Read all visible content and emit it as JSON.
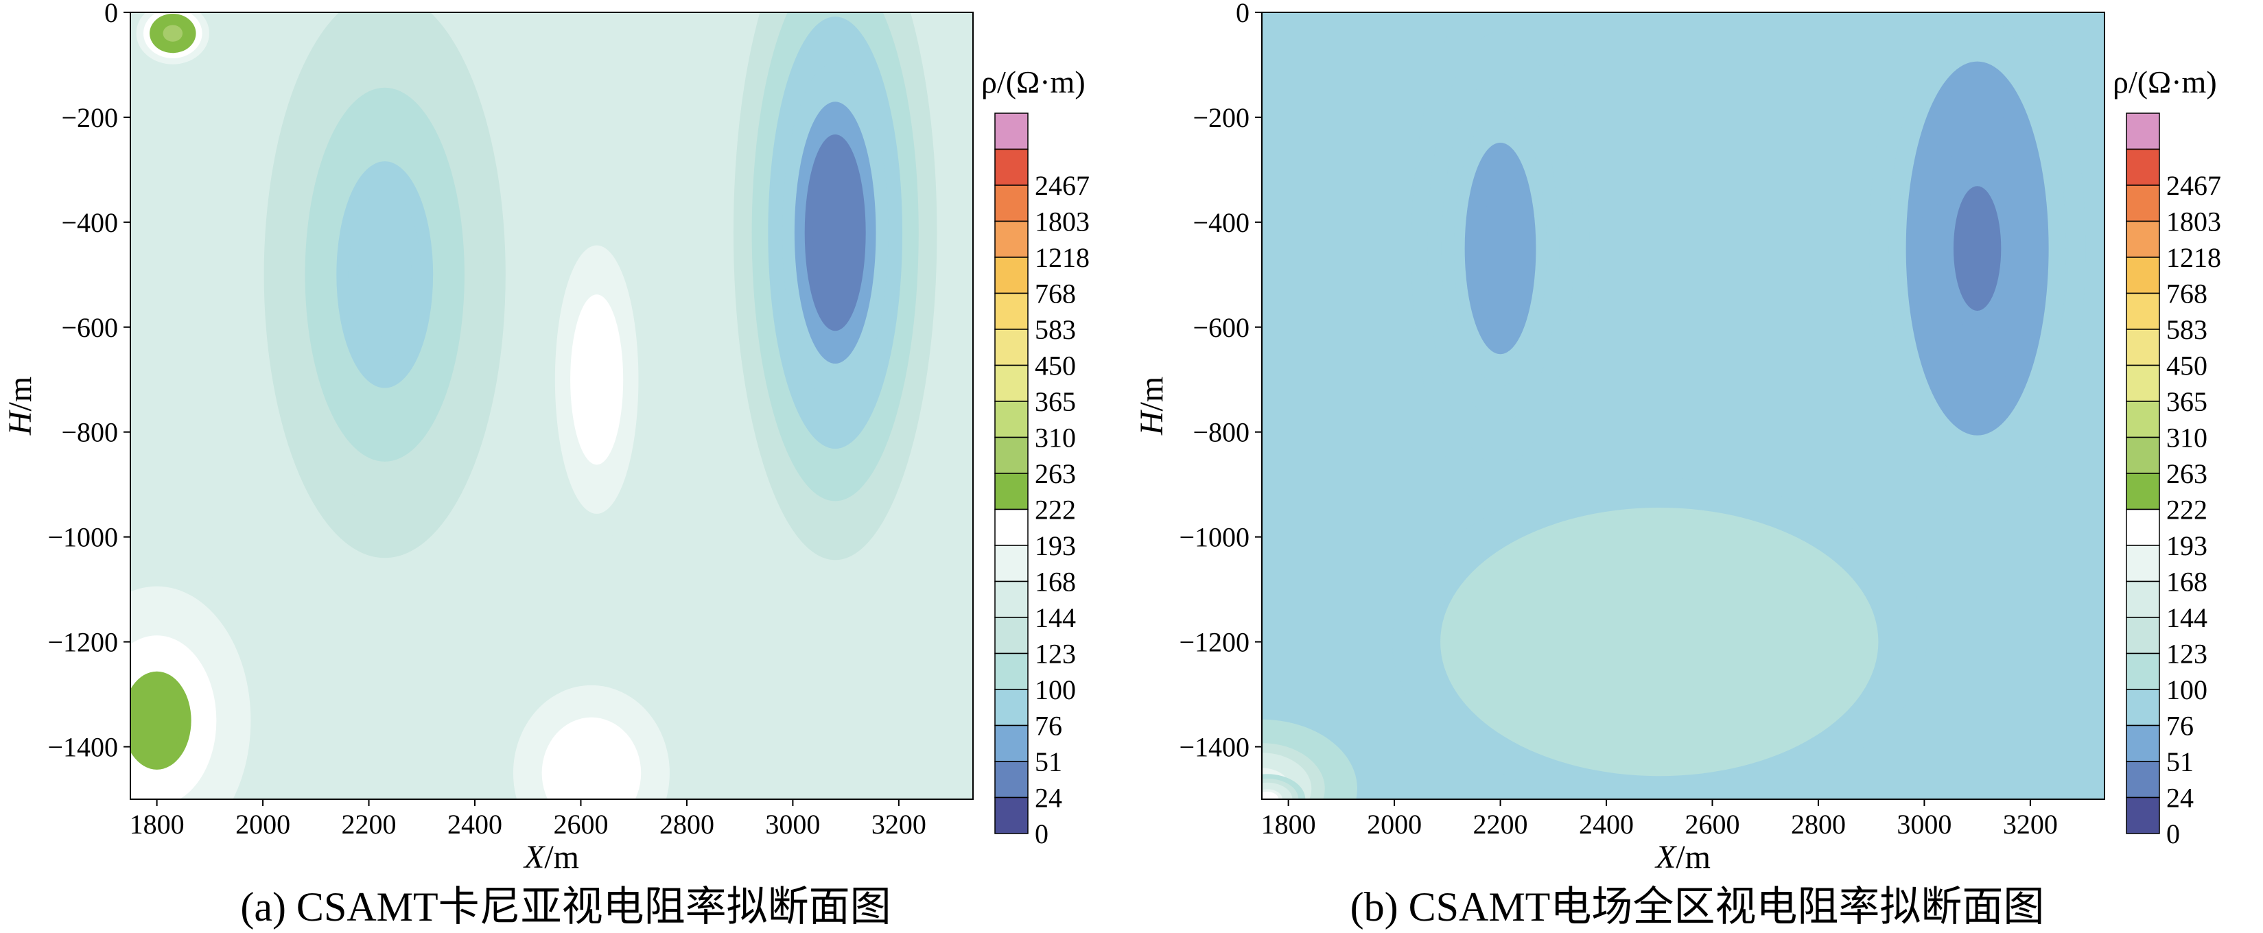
{
  "figures": [
    {
      "caption": "(a) CSAMT卡尼亚视电阻率拟断面图",
      "xlabel_var": "X",
      "xlabel_unit": "/m",
      "ylabel_var": "H",
      "ylabel_unit": "/m",
      "colorbar_title": "ρ/(Ω·m)"
    },
    {
      "caption": "(b) CSAMT电场全区视电阻率拟断面图",
      "xlabel_var": "X",
      "xlabel_unit": "/m",
      "ylabel_var": "H",
      "ylabel_unit": "/m",
      "colorbar_title": "ρ/(Ω·m)"
    }
  ],
  "colorbar": {
    "levels": [
      "0",
      "24",
      "51",
      "76",
      "100",
      "123",
      "144",
      "168",
      "193",
      "222",
      "263",
      "310",
      "365",
      "450",
      "583",
      "768",
      "1218",
      "1803",
      "2467"
    ],
    "colors": [
      "#4b4f95",
      "#6484bd",
      "#7aaad6",
      "#a1d3e1",
      "#b6e0dc",
      "#c8e5df",
      "#d8ede8",
      "#eaf5f2",
      "#ffffff",
      "#84bb44",
      "#a7cc6b",
      "#c2dc7a",
      "#e7e88c",
      "#f2e487",
      "#f8d870",
      "#f7c356",
      "#f4a15a",
      "#ee8148",
      "#e3563f",
      "#d995c4"
    ]
  },
  "chart_data": [
    {
      "type": "heatmap",
      "title": "(a) CSAMT卡尼亚视电阻率拟断面图",
      "xlabel": "X/m",
      "ylabel": "H/m",
      "colorbar_label": "ρ/(Ω·m)",
      "xlim": [
        1750,
        3340
      ],
      "ylim": [
        -1500,
        0
      ],
      "xticks": [
        1800,
        2000,
        2200,
        2400,
        2600,
        2800,
        3000,
        3200
      ],
      "yticks": [
        0,
        -200,
        -400,
        -600,
        -800,
        -1000,
        -1200,
        -1400
      ],
      "contour_levels": [
        0,
        24,
        51,
        76,
        100,
        123,
        144,
        168,
        193,
        222,
        263,
        310,
        365,
        450,
        583,
        768,
        1218,
        1803,
        2467
      ],
      "features": [
        {
          "x": 3080,
          "y": -420,
          "rho": 12,
          "sx": 160,
          "sy": 520
        },
        {
          "x": 2230,
          "y": -500,
          "rho": 60,
          "sx": 190,
          "sy": 450
        },
        {
          "x": 2630,
          "y": -700,
          "rho": 235,
          "sx": 80,
          "sy": 260
        },
        {
          "x": 1800,
          "y": -1350,
          "rho": 250,
          "sx": 180,
          "sy": 260
        },
        {
          "x": 2620,
          "y": -1450,
          "rho": 235,
          "sx": 150,
          "sy": 170
        },
        {
          "x": 1830,
          "y": -40,
          "rho": 300,
          "sx": 70,
          "sy": 60
        }
      ]
    },
    {
      "type": "heatmap",
      "title": "(b) CSAMT电场全区视电阻率拟断面图",
      "xlabel": "X/m",
      "ylabel": "H/m",
      "colorbar_label": "ρ/(Ω·m)",
      "xlim": [
        1750,
        3340
      ],
      "ylim": [
        -1500,
        0
      ],
      "xticks": [
        1800,
        2000,
        2200,
        2400,
        2600,
        2800,
        3000,
        3200
      ],
      "yticks": [
        0,
        -200,
        -400,
        -600,
        -800,
        -1000,
        -1200,
        -1400
      ],
      "contour_levels": [
        0,
        24,
        51,
        76,
        100,
        123,
        144,
        168,
        193,
        222,
        263,
        310,
        365,
        450,
        583,
        768,
        1218,
        1803,
        2467
      ],
      "features": [
        {
          "x": 3100,
          "y": -450,
          "rho": 35,
          "sx": 170,
          "sy": 450
        },
        {
          "x": 2200,
          "y": -450,
          "rho": 62,
          "sx": 140,
          "sy": 420
        },
        {
          "x": 2500,
          "y": -1200,
          "rho": 125,
          "sx": 420,
          "sy": 260
        },
        {
          "x": 1750,
          "y": -1480,
          "rho": 195,
          "sx": 150,
          "sy": 110
        },
        {
          "x": 1760,
          "y": -1500,
          "rho": 230,
          "sx": 60,
          "sy": 40
        }
      ]
    }
  ]
}
